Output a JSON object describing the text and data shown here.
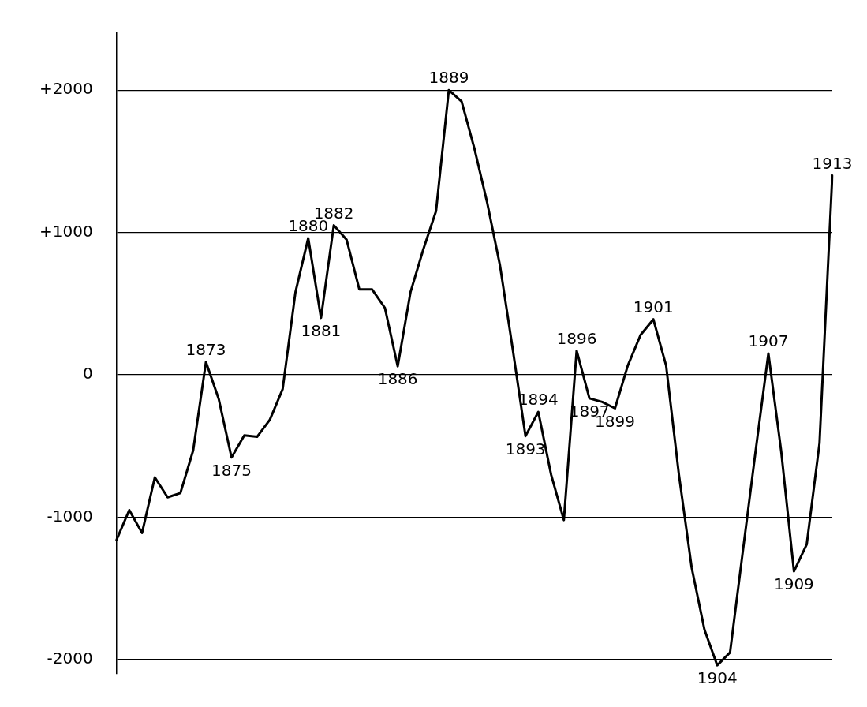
{
  "chart_data": {
    "type": "line",
    "categories": [
      null,
      null,
      null,
      null,
      null,
      null,
      null,
      null,
      null,
      null,
      null,
      null,
      null,
      null,
      null,
      null,
      null,
      null,
      null,
      null,
      null,
      null,
      null,
      null,
      null,
      null,
      null,
      null,
      null,
      null,
      null,
      null,
      null,
      null,
      null,
      null,
      null,
      null,
      null,
      null,
      null,
      null,
      null,
      null,
      null,
      null,
      null,
      null,
      null,
      null,
      null,
      null,
      null,
      null,
      null,
      null,
      null
    ],
    "series": [
      {
        "color": "#000000",
        "values": [
          -1160,
          -950,
          -1110,
          -720,
          -860,
          -830,
          -530,
          90,
          -170,
          -580,
          -425,
          -435,
          -315,
          -100,
          580,
          960,
          400,
          1050,
          950,
          600,
          600,
          470,
          60,
          580,
          880,
          1150,
          2000,
          1920,
          1590,
          1210,
          770,
          180,
          -430,
          -260,
          -700,
          -1020,
          170,
          -165,
          -190,
          -235,
          65,
          280,
          390,
          65,
          -700,
          -1355,
          -1790,
          -2040,
          -1950,
          -1240,
          -535,
          150,
          -535,
          -1380,
          -1190,
          -480,
          1400
        ]
      }
    ],
    "ylim": [
      -2100,
      2400
    ],
    "yticks": [
      {
        "value": 2000,
        "label": "+2000"
      },
      {
        "value": 1000,
        "label": "+1000"
      },
      0,
      -1000,
      -2000
    ],
    "tick_labels": "y",
    "grid": "y",
    "marker": "none",
    "line_style": "solid",
    "legend": false,
    "annotations": [
      {
        "text": "1873",
        "y": 90
      },
      {
        "text": "1875",
        "y": -580
      },
      {
        "text": "1880",
        "y": 960
      },
      {
        "text": "1881",
        "y": 400
      },
      {
        "text": "1882",
        "y": 1050
      },
      {
        "text": "1886",
        "y": 60
      },
      {
        "text": "1889",
        "y": 2000
      },
      {
        "text": "1893",
        "y": -430
      },
      {
        "text": "1894",
        "y": -260
      },
      {
        "text": "1896",
        "y": 170
      },
      {
        "text": "1897",
        "y": -165
      },
      {
        "text": "1899",
        "y": -235
      },
      {
        "text": "1901",
        "y": 390
      },
      {
        "text": "1904",
        "y": -2040
      },
      {
        "text": "1907",
        "y": 150
      },
      {
        "text": "1909",
        "y": -1380
      },
      {
        "text": "1913",
        "y": 1400
      }
    ]
  }
}
